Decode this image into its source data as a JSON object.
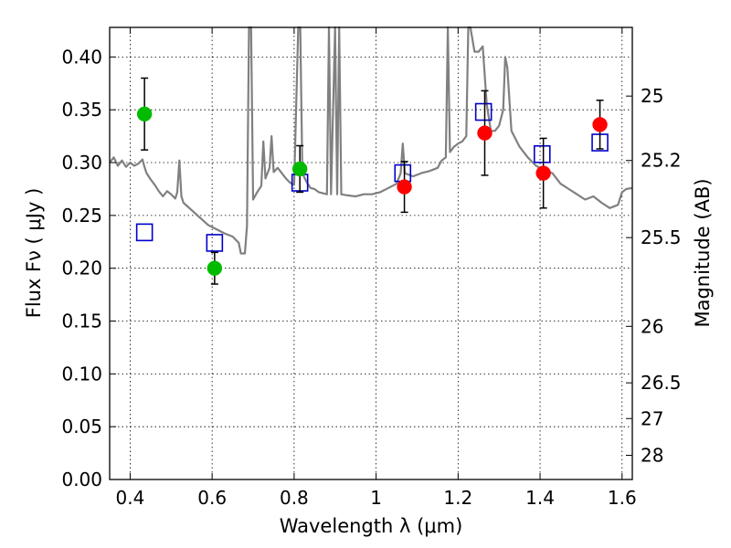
{
  "chart_data": {
    "type": "scatter",
    "xlabel": "Wavelength  λ (μm)",
    "ylabel": "Flux  Fν  ( μJy )",
    "ylabel_right": "Magnitude (AB)",
    "xlim": [
      0.35,
      1.625
    ],
    "ylim": [
      0.0,
      0.428
    ],
    "grid": true,
    "x_ticks": [
      {
        "value": 0.4,
        "label": "0.4"
      },
      {
        "value": 0.6,
        "label": "0.6"
      },
      {
        "value": 0.8,
        "label": "0.8"
      },
      {
        "value": 1.0,
        "label": "1"
      },
      {
        "value": 1.2,
        "label": "1.2"
      },
      {
        "value": 1.4,
        "label": "1.4"
      },
      {
        "value": 1.6,
        "label": "1.6"
      }
    ],
    "y_ticks": [
      {
        "value": 0.0,
        "label": "0.00"
      },
      {
        "value": 0.05,
        "label": "0.05"
      },
      {
        "value": 0.1,
        "label": "0.10"
      },
      {
        "value": 0.15,
        "label": "0.15"
      },
      {
        "value": 0.2,
        "label": "0.20"
      },
      {
        "value": 0.25,
        "label": "0.25"
      },
      {
        "value": 0.3,
        "label": "0.30"
      },
      {
        "value": 0.35,
        "label": "0.35"
      },
      {
        "value": 0.4,
        "label": "0.40"
      }
    ],
    "mag_ticks": [
      {
        "label": "25",
        "flux": 0.363
      },
      {
        "label": "25.2",
        "flux": 0.302
      },
      {
        "label": "25.5",
        "flux": 0.229
      },
      {
        "label": "26",
        "flux": 0.145
      },
      {
        "label": "26.5",
        "flux": 0.0915
      },
      {
        "label": "27",
        "flux": 0.0577
      },
      {
        "label": "28",
        "flux": 0.0229
      }
    ],
    "series": [
      {
        "marker": "circle",
        "color": "#00bb00",
        "points": [
          {
            "x": 0.435,
            "y": 0.346,
            "err": 0.034
          },
          {
            "x": 0.606,
            "y": 0.2,
            "err": 0.015
          },
          {
            "x": 0.814,
            "y": 0.294,
            "err": 0.022
          }
        ]
      },
      {
        "marker": "circle",
        "color": "#ff0000",
        "points": [
          {
            "x": 1.069,
            "y": 0.277,
            "err": 0.024
          },
          {
            "x": 1.265,
            "y": 0.328,
            "err": 0.04
          },
          {
            "x": 1.408,
            "y": 0.29,
            "err": 0.033
          },
          {
            "x": 1.546,
            "y": 0.336,
            "err": 0.023
          }
        ]
      },
      {
        "marker": "open-square",
        "color": "#0000cc",
        "points": [
          {
            "x": 0.435,
            "y": 0.234
          },
          {
            "x": 0.606,
            "y": 0.224
          },
          {
            "x": 0.814,
            "y": 0.281
          },
          {
            "x": 1.065,
            "y": 0.29
          },
          {
            "x": 1.262,
            "y": 0.348
          },
          {
            "x": 1.405,
            "y": 0.308
          },
          {
            "x": 1.546,
            "y": 0.319
          }
        ]
      },
      {
        "marker": "line",
        "color": "#808080",
        "points": [
          [
            0.35,
            0.3
          ],
          [
            0.36,
            0.305
          ],
          [
            0.37,
            0.297
          ],
          [
            0.38,
            0.302
          ],
          [
            0.39,
            0.296
          ],
          [
            0.4,
            0.3
          ],
          [
            0.41,
            0.297
          ],
          [
            0.42,
            0.299
          ],
          [
            0.43,
            0.303
          ],
          [
            0.435,
            0.296
          ],
          [
            0.44,
            0.29
          ],
          [
            0.45,
            0.284
          ],
          [
            0.46,
            0.279
          ],
          [
            0.47,
            0.273
          ],
          [
            0.48,
            0.268
          ],
          [
            0.49,
            0.273
          ],
          [
            0.5,
            0.27
          ],
          [
            0.51,
            0.266
          ],
          [
            0.515,
            0.272
          ],
          [
            0.52,
            0.302
          ],
          [
            0.525,
            0.268
          ],
          [
            0.53,
            0.262
          ],
          [
            0.55,
            0.255
          ],
          [
            0.57,
            0.248
          ],
          [
            0.59,
            0.241
          ],
          [
            0.61,
            0.237
          ],
          [
            0.63,
            0.233
          ],
          [
            0.65,
            0.23
          ],
          [
            0.665,
            0.224
          ],
          [
            0.67,
            0.214
          ],
          [
            0.68,
            0.214
          ],
          [
            0.685,
            0.24
          ],
          [
            0.69,
            0.428
          ],
          [
            0.695,
            0.428
          ],
          [
            0.7,
            0.265
          ],
          [
            0.71,
            0.272
          ],
          [
            0.72,
            0.278
          ],
          [
            0.725,
            0.32
          ],
          [
            0.73,
            0.285
          ],
          [
            0.74,
            0.295
          ],
          [
            0.745,
            0.325
          ],
          [
            0.75,
            0.291
          ],
          [
            0.76,
            0.295
          ],
          [
            0.77,
            0.29
          ],
          [
            0.78,
            0.285
          ],
          [
            0.79,
            0.281
          ],
          [
            0.8,
            0.279
          ],
          [
            0.81,
            0.428
          ],
          [
            0.815,
            0.428
          ],
          [
            0.82,
            0.29
          ],
          [
            0.83,
            0.282
          ],
          [
            0.84,
            0.276
          ],
          [
            0.85,
            0.275
          ],
          [
            0.86,
            0.272
          ],
          [
            0.87,
            0.271
          ],
          [
            0.88,
            0.27
          ],
          [
            0.885,
            0.428
          ],
          [
            0.89,
            0.27
          ],
          [
            0.9,
            0.428
          ],
          [
            0.905,
            0.27
          ],
          [
            0.91,
            0.428
          ],
          [
            0.915,
            0.27
          ],
          [
            0.93,
            0.269
          ],
          [
            0.95,
            0.268
          ],
          [
            0.97,
            0.27
          ],
          [
            0.99,
            0.27
          ],
          [
            1.01,
            0.272
          ],
          [
            1.03,
            0.276
          ],
          [
            1.05,
            0.28
          ],
          [
            1.06,
            0.29
          ],
          [
            1.065,
            0.318
          ],
          [
            1.07,
            0.29
          ],
          [
            1.09,
            0.287
          ],
          [
            1.11,
            0.29
          ],
          [
            1.13,
            0.292
          ],
          [
            1.15,
            0.295
          ],
          [
            1.16,
            0.302
          ],
          [
            1.17,
            0.305
          ],
          [
            1.175,
            0.428
          ],
          [
            1.18,
            0.31
          ],
          [
            1.19,
            0.315
          ],
          [
            1.2,
            0.318
          ],
          [
            1.21,
            0.32
          ],
          [
            1.22,
            0.325
          ],
          [
            1.225,
            0.428
          ],
          [
            1.23,
            0.428
          ],
          [
            1.24,
            0.405
          ],
          [
            1.25,
            0.405
          ],
          [
            1.26,
            0.41
          ],
          [
            1.27,
            0.355
          ],
          [
            1.28,
            0.33
          ],
          [
            1.29,
            0.33
          ],
          [
            1.3,
            0.335
          ],
          [
            1.31,
            0.35
          ],
          [
            1.315,
            0.4
          ],
          [
            1.32,
            0.39
          ],
          [
            1.33,
            0.33
          ],
          [
            1.35,
            0.315
          ],
          [
            1.37,
            0.305
          ],
          [
            1.39,
            0.297
          ],
          [
            1.41,
            0.293
          ],
          [
            1.43,
            0.29
          ],
          [
            1.45,
            0.28
          ],
          [
            1.47,
            0.275
          ],
          [
            1.49,
            0.27
          ],
          [
            1.51,
            0.265
          ],
          [
            1.53,
            0.268
          ],
          [
            1.55,
            0.262
          ],
          [
            1.57,
            0.257
          ],
          [
            1.59,
            0.26
          ],
          [
            1.6,
            0.272
          ],
          [
            1.61,
            0.275
          ],
          [
            1.625,
            0.276
          ]
        ]
      }
    ]
  }
}
